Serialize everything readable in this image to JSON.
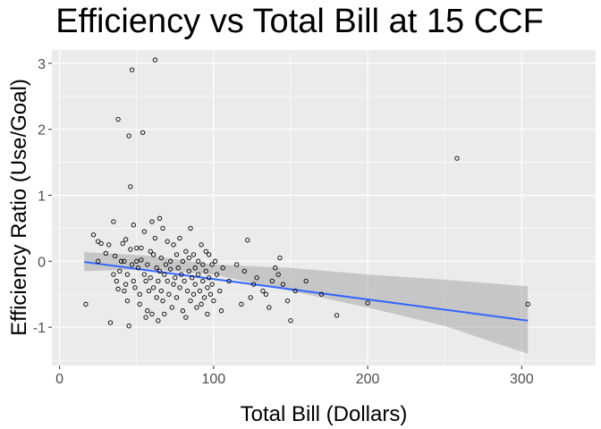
{
  "chart_data": {
    "type": "scatter",
    "title": "Efficiency vs Total Bill at  15 CCF",
    "xlabel": "Total Bill (Dollars)",
    "ylabel": "Efficiency Ratio (Use/Goal)",
    "xlim": [
      -5,
      348
    ],
    "ylim": [
      -1.58,
      3.2
    ],
    "x_ticks": [
      0,
      100,
      200,
      300
    ],
    "x_tick_labels": [
      "0",
      "100",
      "200",
      "300"
    ],
    "y_ticks": [
      -1,
      0,
      1,
      2,
      3
    ],
    "y_tick_labels": [
      "-1",
      "0",
      "1",
      "2",
      "3"
    ],
    "grid": true,
    "panel_color": "#ebebeb",
    "grid_color": "#ffffff",
    "point_color": "#000000",
    "trend_color": "#3366ff",
    "band_color": "#999999",
    "points": [
      [
        17,
        -0.65
      ],
      [
        22,
        0.4
      ],
      [
        25,
        0.3
      ],
      [
        25,
        0.0
      ],
      [
        27,
        0.27
      ],
      [
        30,
        0.12
      ],
      [
        32,
        0.25
      ],
      [
        33,
        -0.93
      ],
      [
        35,
        0.6
      ],
      [
        35,
        -0.2
      ],
      [
        36,
        0.08
      ],
      [
        37,
        -0.3
      ],
      [
        38,
        2.15
      ],
      [
        38,
        -0.42
      ],
      [
        39,
        -0.15
      ],
      [
        40,
        0.0
      ],
      [
        41,
        0.27
      ],
      [
        42,
        -0.45
      ],
      [
        42,
        0.0
      ],
      [
        43,
        0.33
      ],
      [
        43,
        -0.35
      ],
      [
        44,
        -0.6
      ],
      [
        44,
        -0.2
      ],
      [
        45,
        -0.98
      ],
      [
        45,
        1.9
      ],
      [
        46,
        1.13
      ],
      [
        46,
        0.18
      ],
      [
        47,
        2.9
      ],
      [
        47,
        -0.05
      ],
      [
        48,
        0.55
      ],
      [
        48,
        -0.3
      ],
      [
        49,
        -0.4
      ],
      [
        50,
        0.0
      ],
      [
        50,
        0.2
      ],
      [
        51,
        -0.1
      ],
      [
        52,
        -0.5
      ],
      [
        52,
        -0.65
      ],
      [
        53,
        0.2
      ],
      [
        53,
        0.02
      ],
      [
        54,
        1.95
      ],
      [
        55,
        -0.2
      ],
      [
        55,
        0.45
      ],
      [
        56,
        -0.3
      ],
      [
        56,
        -0.85
      ],
      [
        57,
        -0.05
      ],
      [
        57,
        -0.75
      ],
      [
        58,
        -0.45
      ],
      [
        59,
        0.15
      ],
      [
        59,
        -0.25
      ],
      [
        60,
        0.6
      ],
      [
        60,
        -0.8
      ],
      [
        61,
        0.1
      ],
      [
        61,
        -0.4
      ],
      [
        62,
        3.05
      ],
      [
        62,
        0.35
      ],
      [
        63,
        -0.55
      ],
      [
        63,
        -0.1
      ],
      [
        64,
        -0.3
      ],
      [
        64,
        -0.9
      ],
      [
        65,
        0.65
      ],
      [
        65,
        -0.15
      ],
      [
        66,
        0.05
      ],
      [
        66,
        -0.45
      ],
      [
        67,
        0.5
      ],
      [
        67,
        -0.6
      ],
      [
        68,
        -0.2
      ],
      [
        68,
        -0.8
      ],
      [
        69,
        -0.05
      ],
      [
        70,
        0.3
      ],
      [
        70,
        -0.3
      ],
      [
        71,
        -0.5
      ],
      [
        72,
        -0.12
      ],
      [
        72,
        0.0
      ],
      [
        73,
        -0.7
      ],
      [
        74,
        0.25
      ],
      [
        74,
        -0.35
      ],
      [
        75,
        -0.25
      ],
      [
        76,
        0.1
      ],
      [
        76,
        -0.55
      ],
      [
        77,
        -0.1
      ],
      [
        78,
        0.35
      ],
      [
        78,
        -0.4
      ],
      [
        79,
        -0.2
      ],
      [
        80,
        -0.75
      ],
      [
        80,
        0.0
      ],
      [
        81,
        -0.3
      ],
      [
        82,
        -0.85
      ],
      [
        82,
        0.15
      ],
      [
        83,
        -0.45
      ],
      [
        84,
        0.05
      ],
      [
        84,
        -0.15
      ],
      [
        85,
        -0.6
      ],
      [
        85,
        0.5
      ],
      [
        86,
        -0.25
      ],
      [
        87,
        0.1
      ],
      [
        87,
        -0.5
      ],
      [
        88,
        -0.1
      ],
      [
        88,
        -0.35
      ],
      [
        89,
        -0.7
      ],
      [
        90,
        0.0
      ],
      [
        90,
        -0.2
      ],
      [
        91,
        -0.45
      ],
      [
        92,
        0.25
      ],
      [
        92,
        -0.65
      ],
      [
        93,
        -0.05
      ],
      [
        93,
        -0.3
      ],
      [
        94,
        -0.55
      ],
      [
        95,
        0.15
      ],
      [
        95,
        -0.15
      ],
      [
        96,
        -0.4
      ],
      [
        96,
        -0.8
      ],
      [
        97,
        0.1
      ],
      [
        97,
        -0.25
      ],
      [
        98,
        -0.5
      ],
      [
        99,
        -0.05
      ],
      [
        99,
        -0.35
      ],
      [
        100,
        -0.6
      ],
      [
        101,
        0.0
      ],
      [
        102,
        -0.2
      ],
      [
        104,
        -0.45
      ],
      [
        105,
        -0.75
      ],
      [
        106,
        -0.1
      ],
      [
        110,
        -0.3
      ],
      [
        115,
        -0.05
      ],
      [
        118,
        -0.65
      ],
      [
        120,
        -0.15
      ],
      [
        122,
        0.32
      ],
      [
        124,
        -0.55
      ],
      [
        126,
        -0.35
      ],
      [
        128,
        -0.25
      ],
      [
        132,
        -0.45
      ],
      [
        134,
        -0.5
      ],
      [
        136,
        -0.7
      ],
      [
        138,
        -0.3
      ],
      [
        140,
        -0.1
      ],
      [
        142,
        -0.2
      ],
      [
        143,
        0.05
      ],
      [
        145,
        -0.35
      ],
      [
        148,
        -0.6
      ],
      [
        150,
        -0.9
      ],
      [
        153,
        -0.45
      ],
      [
        160,
        -0.3
      ],
      [
        170,
        -0.5
      ],
      [
        180,
        -0.82
      ],
      [
        200,
        -0.63
      ],
      [
        258,
        1.56
      ],
      [
        304,
        -0.65
      ]
    ],
    "trend": {
      "x": [
        16,
        304
      ],
      "y": [
        -0.01,
        -0.9
      ],
      "band": {
        "x": [
          16,
          60,
          100,
          150,
          200,
          250,
          304
        ],
        "lower": [
          -0.15,
          -0.12,
          -0.2,
          -0.45,
          -0.7,
          -0.98,
          -1.4
        ],
        "upper": [
          0.14,
          0.08,
          -0.05,
          -0.1,
          -0.2,
          -0.28,
          -0.38
        ]
      }
    }
  }
}
